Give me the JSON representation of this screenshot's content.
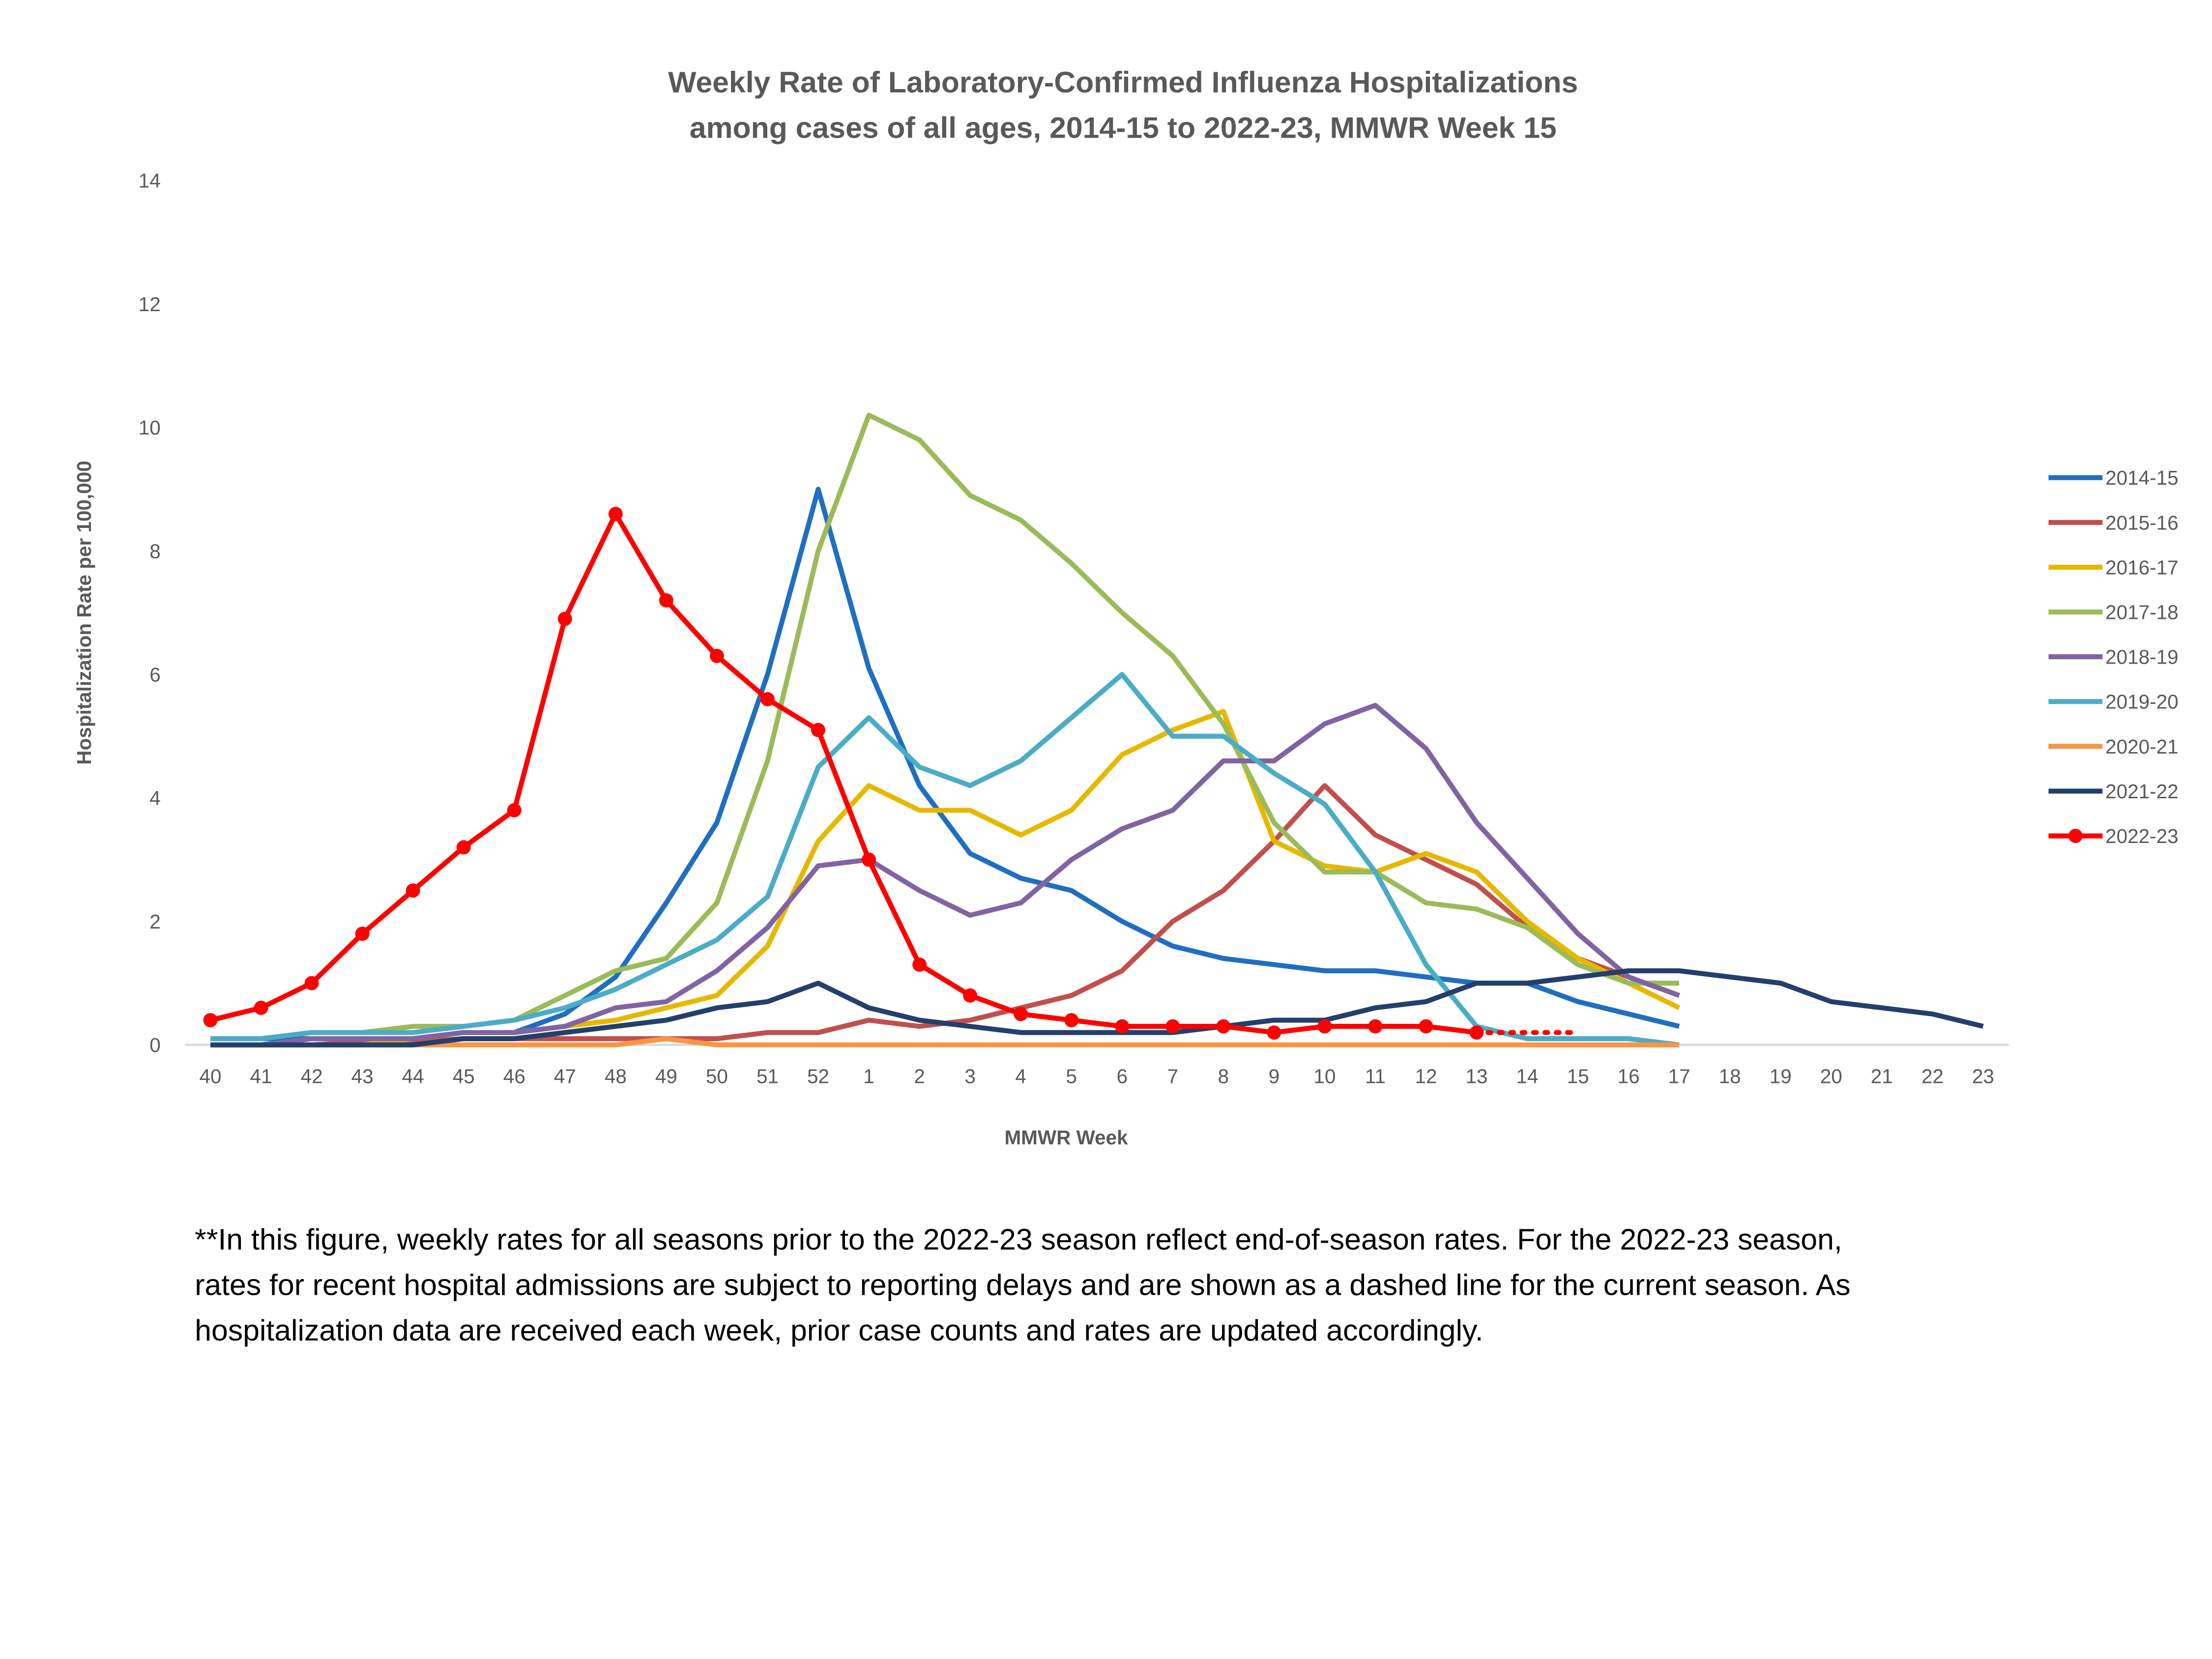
{
  "chart_data": {
    "type": "line",
    "title": [
      "Weekly Rate of Laboratory-Confirmed Influenza Hospitalizations",
      "among cases of all ages, 2014-15 to 2022-23, MMWR Week 15"
    ],
    "x_label": "MMWR Week",
    "y_label": "Hospitalization Rate per 100,000",
    "categories": [
      "40",
      "41",
      "42",
      "43",
      "44",
      "45",
      "46",
      "47",
      "48",
      "49",
      "50",
      "51",
      "52",
      "1",
      "2",
      "3",
      "4",
      "5",
      "6",
      "7",
      "8",
      "9",
      "10",
      "11",
      "12",
      "13",
      "14",
      "15",
      "16",
      "17",
      "18",
      "19",
      "20",
      "21",
      "22",
      "23"
    ],
    "ylim": [
      0,
      14
    ],
    "yticks": [
      0,
      2,
      4,
      6,
      8,
      10,
      12,
      14
    ],
    "grid": false,
    "legend": "right",
    "series": [
      {
        "name": "2014-15",
        "color": "#1f6fc0",
        "values": [
          0.1,
          0.1,
          0.1,
          0.1,
          0.1,
          0.2,
          0.2,
          0.5,
          1.1,
          2.3,
          3.6,
          6.0,
          9.0,
          6.1,
          4.2,
          3.1,
          2.7,
          2.5,
          2.0,
          1.6,
          1.4,
          1.3,
          1.2,
          1.2,
          1.1,
          1.0,
          1.0,
          0.7,
          0.5,
          0.3,
          null,
          null,
          null,
          null,
          null,
          null
        ]
      },
      {
        "name": "2015-16",
        "color": "#c0504d",
        "values": [
          0,
          0,
          0,
          0.05,
          0.05,
          0.1,
          0.1,
          0.1,
          0.1,
          0.1,
          0.1,
          0.2,
          0.2,
          0.4,
          0.3,
          0.4,
          0.6,
          0.8,
          1.2,
          2.0,
          2.5,
          3.3,
          4.2,
          3.4,
          3.0,
          2.6,
          1.9,
          1.4,
          1.1,
          0.8,
          null,
          null,
          null,
          null,
          null,
          null
        ]
      },
      {
        "name": "2016-17",
        "color": "#e6b800",
        "values": [
          0,
          0,
          0,
          0,
          0.1,
          0.2,
          0.2,
          0.3,
          0.4,
          0.6,
          0.8,
          1.6,
          3.3,
          4.2,
          3.8,
          3.8,
          3.4,
          3.8,
          4.7,
          5.1,
          5.4,
          3.3,
          2.9,
          2.8,
          3.1,
          2.8,
          2.0,
          1.4,
          1.0,
          0.6,
          null,
          null,
          null,
          null,
          null,
          null
        ]
      },
      {
        "name": "2017-18",
        "color": "#9bbb59",
        "values": [
          0.1,
          0.1,
          0.2,
          0.2,
          0.3,
          0.3,
          0.4,
          0.8,
          1.2,
          1.4,
          2.3,
          4.6,
          8.0,
          10.2,
          9.8,
          8.9,
          8.5,
          7.8,
          7.0,
          6.3,
          5.2,
          3.6,
          2.8,
          2.8,
          2.3,
          2.2,
          1.9,
          1.3,
          1.0,
          1.0,
          null,
          null,
          null,
          null,
          null,
          null
        ]
      },
      {
        "name": "2018-19",
        "color": "#8064a2",
        "values": [
          0,
          0,
          0.1,
          0.1,
          0.1,
          0.2,
          0.2,
          0.3,
          0.6,
          0.7,
          1.2,
          1.9,
          2.9,
          3.0,
          2.5,
          2.1,
          2.3,
          3.0,
          3.5,
          3.8,
          4.6,
          4.6,
          5.2,
          5.5,
          4.8,
          3.6,
          2.7,
          1.8,
          1.1,
          0.8,
          null,
          null,
          null,
          null,
          null,
          null
        ]
      },
      {
        "name": "2019-20",
        "color": "#4bacc6",
        "values": [
          0.1,
          0.1,
          0.2,
          0.2,
          0.2,
          0.3,
          0.4,
          0.6,
          0.9,
          1.3,
          1.7,
          2.4,
          4.5,
          5.3,
          4.5,
          4.2,
          4.6,
          5.3,
          6.0,
          5.0,
          5.0,
          4.4,
          3.9,
          2.8,
          1.3,
          0.3,
          0.1,
          0.1,
          0.1,
          0,
          null,
          null,
          null,
          null,
          null,
          null
        ]
      },
      {
        "name": "2020-21",
        "color": "#f79646",
        "values": [
          0,
          0,
          0,
          0,
          0,
          0,
          0,
          0,
          0,
          0.1,
          0,
          0,
          0,
          0,
          0,
          0,
          0,
          0,
          0,
          0,
          0,
          0,
          0,
          0,
          0,
          0,
          0,
          0,
          0,
          0,
          null,
          null,
          null,
          null,
          null,
          null
        ]
      },
      {
        "name": "2021-22",
        "color": "#243f6b",
        "values": [
          0,
          0,
          0,
          0,
          0,
          0.1,
          0.1,
          0.2,
          0.3,
          0.4,
          0.6,
          0.7,
          1.0,
          0.6,
          0.4,
          0.3,
          0.2,
          0.2,
          0.2,
          0.2,
          0.3,
          0.4,
          0.4,
          0.6,
          0.7,
          1.0,
          1.0,
          1.1,
          1.2,
          1.2,
          1.1,
          1.0,
          0.7,
          0.6,
          0.5,
          0.3
        ]
      },
      {
        "name": "2022-23",
        "color": "#ff0000",
        "markers": true,
        "dashed_from": "13",
        "values": [
          0.4,
          0.6,
          1.0,
          1.8,
          2.5,
          3.2,
          3.8,
          6.9,
          8.6,
          7.2,
          6.3,
          5.6,
          5.1,
          3.0,
          1.3,
          0.8,
          0.5,
          0.4,
          0.3,
          0.3,
          0.3,
          0.2,
          0.3,
          0.3,
          0.3,
          0.2,
          0.2,
          0.2,
          null,
          null,
          null,
          null,
          null,
          null,
          null,
          null
        ]
      }
    ],
    "footnote": [
      "**In this figure, weekly rates for all seasons prior to the 2022-23 season reflect end-of-season rates. For the 2022-23 season,",
      "rates for recent hospital admissions are subject to reporting delays and are shown as a dashed line for the current season. As",
      "hospitalization data are received each week, prior case counts and rates are updated accordingly."
    ]
  }
}
